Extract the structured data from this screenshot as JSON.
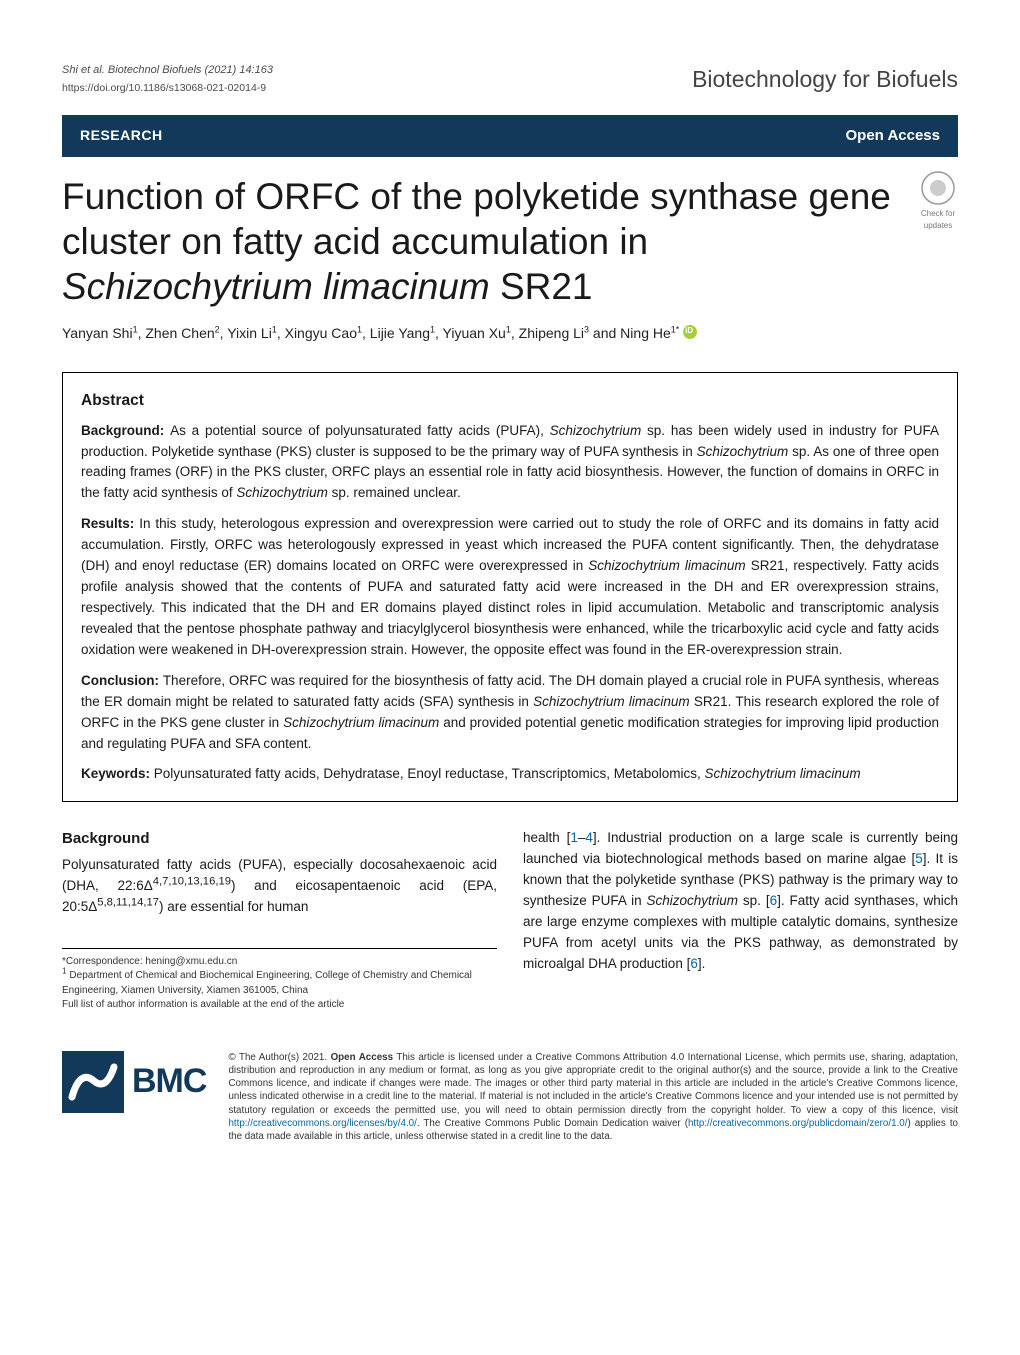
{
  "header": {
    "citation": "Shi et al. Biotechnol Biofuels     (2021) 14:163",
    "doi": "https://doi.org/10.1186/s13068-021-02014-9",
    "journal": "Biotechnology for Biofuels"
  },
  "banner": {
    "left": "RESEARCH",
    "right": "Open Access"
  },
  "badge": {
    "line1": "Check for",
    "line2": "updates"
  },
  "title": "Function of ORFC of the polyketide synthase gene cluster on fatty acid accumulation in Schizochytrium limacinum SR21",
  "authors_html": "Yanyan Shi<sup>1</sup>, Zhen Chen<sup>2</sup>, Yixin Li<sup>1</sup>, Xingyu Cao<sup>1</sup>, Lijie Yang<sup>1</sup>, Yiyuan Xu<sup>1</sup>, Zhipeng Li<sup>3</sup> and Ning He<sup>1*</sup>",
  "abstract": {
    "heading": "Abstract",
    "background_label": "Background: ",
    "background": "As a potential source of polyunsaturated fatty acids (PUFA), Schizochytrium sp. has been widely used in industry for PUFA production. Polyketide synthase (PKS) cluster is supposed to be the primary way of PUFA synthesis in Schizochytrium sp. As one of three open reading frames (ORF) in the PKS cluster, ORFC plays an essential role in fatty acid biosynthesis. However, the function of domains in ORFC in the fatty acid synthesis of Schizochytrium sp. remained unclear.",
    "results_label": "Results: ",
    "results": "In this study, heterologous expression and overexpression were carried out to study the role of ORFC and its domains in fatty acid accumulation. Firstly, ORFC was heterologously expressed in yeast which increased the PUFA content significantly. Then, the dehydratase (DH) and enoyl reductase (ER) domains located on ORFC were overexpressed in Schizochytrium limacinum SR21, respectively. Fatty acids profile analysis showed that the contents of PUFA and saturated fatty acid were increased in the DH and ER overexpression strains, respectively. This indicated that the DH and ER domains played distinct roles in lipid accumulation. Metabolic and transcriptomic analysis revealed that the pentose phosphate pathway and triacylglycerol biosynthesis were enhanced, while the tricarboxylic acid cycle and fatty acids oxidation were weakened in DH-overexpression strain. However, the opposite effect was found in the ER-overexpression strain.",
    "conclusion_label": "Conclusion: ",
    "conclusion": "Therefore, ORFC was required for the biosynthesis of fatty acid. The DH domain played a crucial role in PUFA synthesis, whereas the ER domain might be related to saturated fatty acids (SFA) synthesis in Schizochytrium limacinum SR21. This research explored the role of ORFC in the PKS gene cluster in Schizochytrium limacinum and provided potential genetic modification strategies for improving lipid production and regulating PUFA and SFA content.",
    "keywords_label": "Keywords: ",
    "keywords": "Polyunsaturated fatty acids, Dehydratase, Enoyl reductase, Transcriptomics, Metabolomics, Schizochytrium limacinum"
  },
  "body": {
    "heading": "Background",
    "left_para_html": "Polyunsaturated fatty acids (PUFA), especially docosahexaenoic acid (DHA, 22:6Δ<sup>4,7,10,13,16,19</sup>) and eicosapentaenoic acid (EPA, 20:5Δ<sup>5,8,11,14,17</sup>) are essential for human",
    "right_para_html": "health [<span class=\"ref\">1</span>–<span class=\"ref\">4</span>]. Industrial production on a large scale is currently being launched via biotechnological methods based on marine algae [<span class=\"ref\">5</span>]. It is known that the polyketide synthase (PKS) pathway is the primary way to synthesize PUFA in <i>Schizochytrium</i> sp. [<span class=\"ref\">6</span>]. Fatty acid synthases, which are large enzyme complexes with multiple catalytic domains, synthesize PUFA from acetyl units via the PKS pathway, as demonstrated by microalgal DHA production [<span class=\"ref\">6</span>]."
  },
  "correspondence": {
    "line1": "*Correspondence:  hening@xmu.edu.cn",
    "line2_html": "<sup>1</sup> Department of Chemical and Biochemical Engineering, College of Chemistry and Chemical Engineering, Xiamen University, Xiamen 361005, China",
    "line3": "Full list of author information is available at the end of the article"
  },
  "footer": {
    "bmc": "BMC",
    "license_html": "© The Author(s) 2021. <span class=\"cc\">Open Access</span> This article is licensed under a Creative Commons Attribution 4.0 International License, which permits use, sharing, adaptation, distribution and reproduction in any medium or format, as long as you give appropriate credit to the original author(s) and the source, provide a link to the Creative Commons licence, and indicate if changes were made. The images or other third party material in this article are included in the article's Creative Commons licence, unless indicated otherwise in a credit line to the material. If material is not included in the article's Creative Commons licence and your intended use is not permitted by statutory regulation or exceeds the permitted use, you will need to obtain permission directly from the copyright holder. To view a copy of this licence, visit <span class=\"link\">http://creativecommons.org/licenses/by/4.0/</span>. The Creative Commons Public Domain Dedication waiver (<span class=\"link\">http://creativecommons.org/publicdomain/zero/1.0/</span>) applies to the data made available in this article, unless otherwise stated in a credit line to the data."
  },
  "colors": {
    "brand_navy": "#13395A",
    "link_blue": "#0366a6",
    "orcid_green": "#A6CE39"
  },
  "typography": {
    "title_fontsize": 37,
    "body_fontsize": 13.5,
    "abstract_fontsize": 13.5,
    "footer_fontsize": 9.8
  }
}
